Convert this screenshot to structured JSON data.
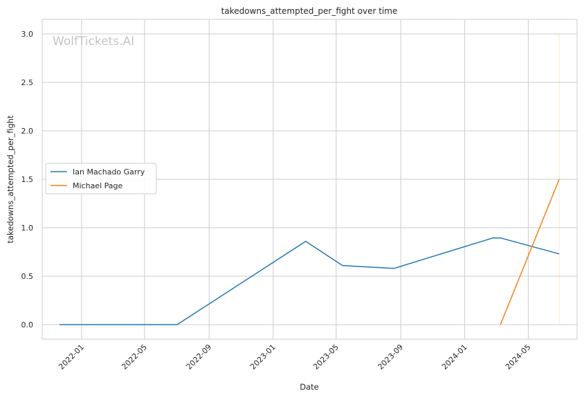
{
  "chart_data": {
    "type": "line",
    "title": "takedowns_attempted_per_fight over time",
    "xlabel": "Date",
    "ylabel": "takedowns_attempted_per_fight",
    "watermark": "WolfTickets.AI",
    "x_ticks": [
      "2022-01",
      "2022-05",
      "2022-09",
      "2023-01",
      "2023-05",
      "2023-09",
      "2024-01",
      "2024-05"
    ],
    "y_ticks": [
      "0.0",
      "0.5",
      "1.0",
      "1.5",
      "2.0",
      "2.5",
      "3.0"
    ],
    "ylim": [
      -0.15,
      3.15
    ],
    "xlim": [
      "2021-10-18",
      "2024-08-02"
    ],
    "grid": true,
    "legend_position": "center-left",
    "series": [
      {
        "name": "Ian Machado Garry",
        "color": "#1f77b4",
        "points": [
          [
            "2021-11-20",
            0.0
          ],
          [
            "2022-07-02",
            0.0
          ],
          [
            "2023-03-04",
            0.86
          ],
          [
            "2023-05-13",
            0.61
          ],
          [
            "2023-08-19",
            0.58
          ],
          [
            "2024-02-24",
            0.895
          ],
          [
            "2024-03-09",
            0.895
          ],
          [
            "2024-06-29",
            0.73
          ]
        ]
      },
      {
        "name": "Michael Page",
        "color": "#ff7f0e",
        "points": [
          [
            "2024-03-09",
            0.0
          ],
          [
            "2024-06-29",
            1.5
          ]
        ]
      }
    ],
    "vertical_marker": {
      "date": "2024-06-29",
      "color": "#ff7f0e"
    }
  }
}
